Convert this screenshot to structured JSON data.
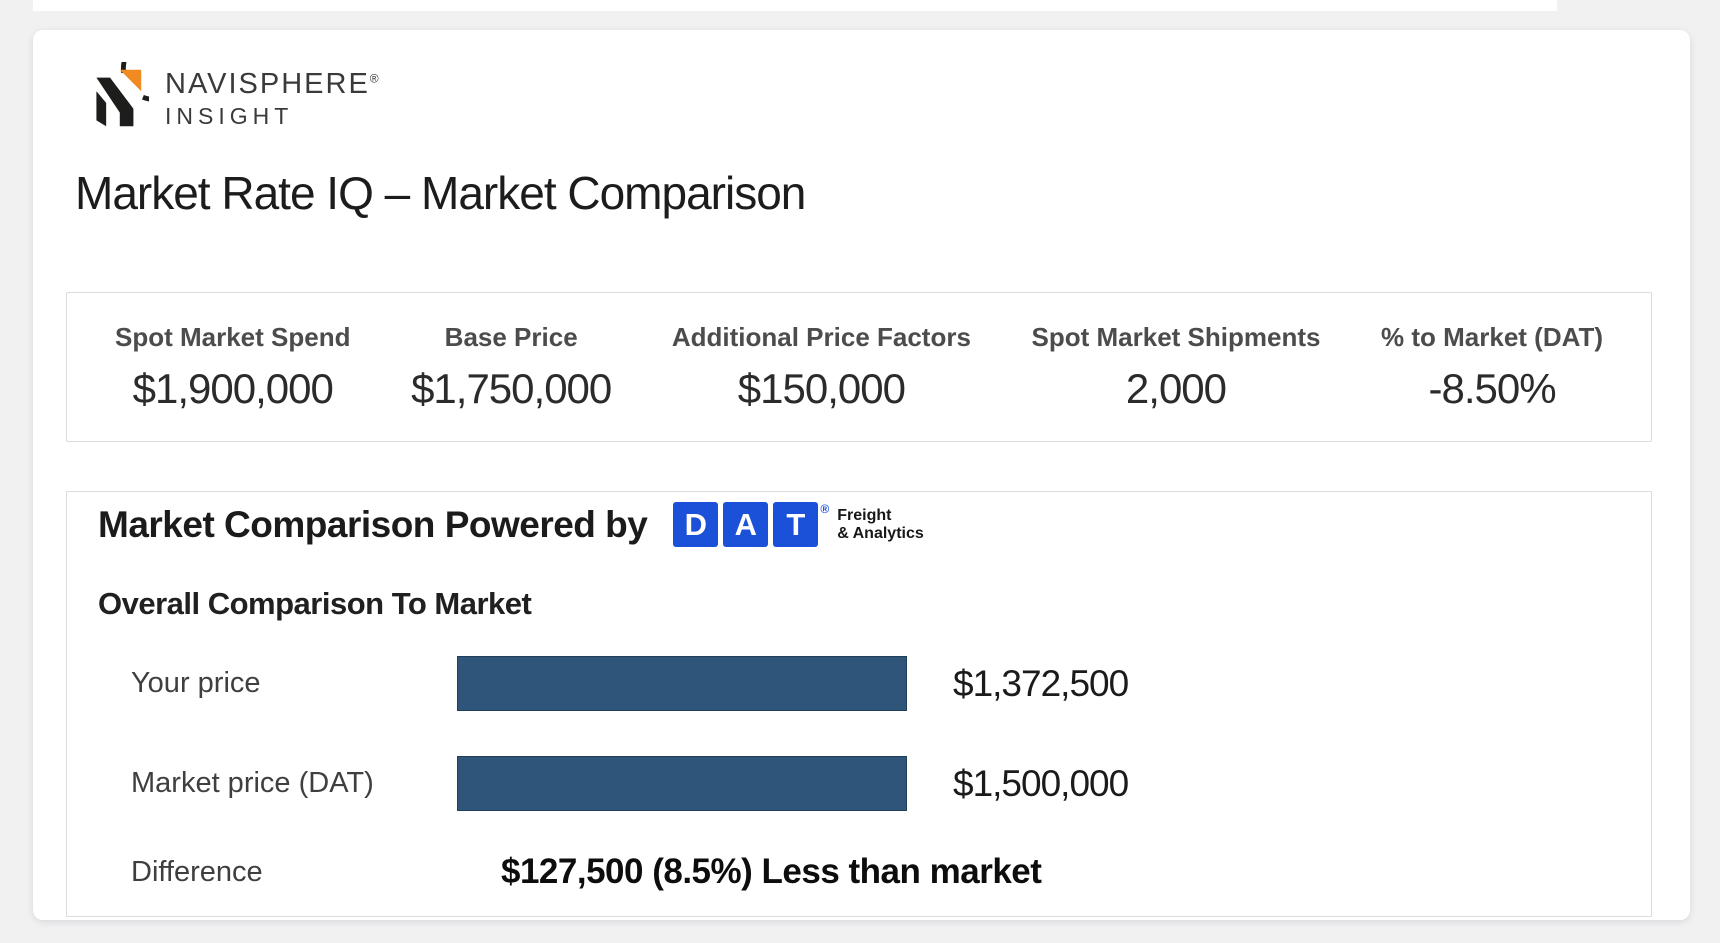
{
  "page": {
    "background": "#f1f1f2"
  },
  "brand": {
    "name_line1": "NAVISPHERE",
    "name_reg": "®",
    "name_line2": "INSIGHT",
    "logo_orange": "#f28a22",
    "logo_black": "#1d1d1b"
  },
  "header": {
    "title": "Market Rate IQ – Market Comparison"
  },
  "stats": {
    "items": [
      {
        "label": "Spot Market Spend",
        "value": "$1,900,000"
      },
      {
        "label": "Base Price",
        "value": "$1,750,000"
      },
      {
        "label": "Additional Price Factors",
        "value": "$150,000"
      },
      {
        "label": "Spot Market Shipments",
        "value": "2,000"
      },
      {
        "label": "% to Market (DAT)",
        "value": "-8.50%"
      }
    ]
  },
  "comparison": {
    "heading": "Market Comparison Powered by",
    "dat_logo": {
      "letters": [
        "D",
        "A",
        "T"
      ],
      "reg": "®",
      "tagline_line1": "Freight",
      "tagline_line2": "& Analytics",
      "blue": "#1b50d8"
    },
    "subheading": "Overall Comparison To Market",
    "rows": [
      {
        "label": "Your price",
        "value": "$1,372,500",
        "bar_pct": 100
      },
      {
        "label": "Market price (DAT)",
        "value": "$1,500,000",
        "bar_pct": 100
      }
    ],
    "difference_label": "Difference",
    "difference_value": "$127,500 (8.5%) Less than market",
    "bar_color": "#2f567a"
  },
  "chart_data": {
    "type": "bar",
    "orientation": "horizontal",
    "title": "Overall Comparison To Market",
    "categories": [
      "Your price",
      "Market price (DAT)"
    ],
    "values": [
      1372500,
      1500000
    ],
    "value_labels": [
      "$1,372,500",
      "$1,500,000"
    ],
    "annotation": "Difference: $127,500 (8.5%) Less than market",
    "bar_color": "#2f567a",
    "legend": false,
    "grid": false
  }
}
